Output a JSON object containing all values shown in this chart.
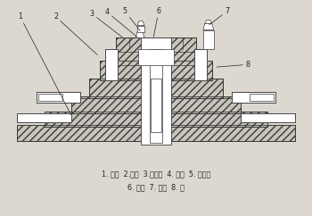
{
  "caption_line1": "1. 盤座  2.壓板  3.工作台  4. 齒輪  5. 插齒刀",
  "caption_line2": "6. 工件  7. 齒条  8. 軸",
  "bg_color": "#dcd8cf",
  "line_color": "#3a3a3a",
  "fig_width": 3.5,
  "fig_height": 2.42,
  "dpi": 100
}
